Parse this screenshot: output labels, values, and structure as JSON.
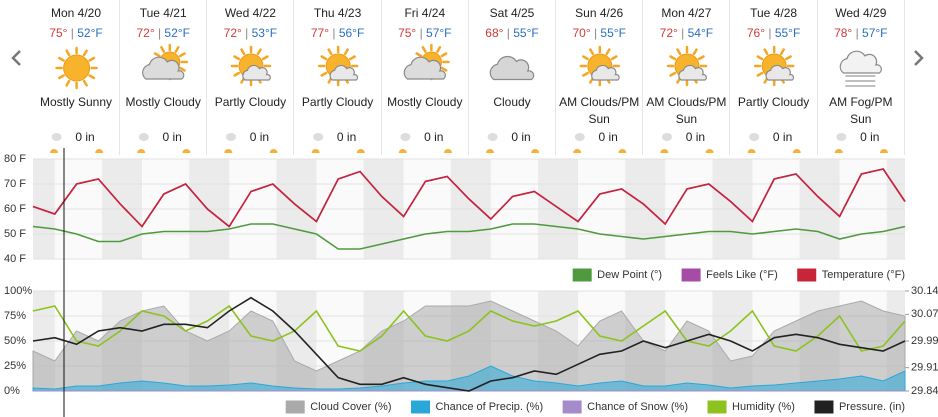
{
  "days": [
    {
      "day": "Mon 4/20",
      "hi": "75°",
      "lo": "52°F",
      "condition": "Mostly Sunny",
      "precip": "0 in"
    },
    {
      "day": "Tue 4/21",
      "hi": "72°",
      "lo": "52°F",
      "condition": "Mostly Cloudy",
      "precip": "0 in"
    },
    {
      "day": "Wed 4/22",
      "hi": "72°",
      "lo": "53°F",
      "condition": "Partly Cloudy",
      "precip": "0 in"
    },
    {
      "day": "Thu 4/23",
      "hi": "77°",
      "lo": "56°F",
      "condition": "Partly Cloudy",
      "precip": "0 in"
    },
    {
      "day": "Fri 4/24",
      "hi": "75°",
      "lo": "57°F",
      "condition": "Mostly Cloudy",
      "precip": "0 in"
    },
    {
      "day": "Sat 4/25",
      "hi": "68°",
      "lo": "55°F",
      "condition": "Cloudy",
      "precip": "0 in"
    },
    {
      "day": "Sun 4/26",
      "hi": "70°",
      "lo": "55°F",
      "condition": "AM Clouds/PM Sun",
      "precip": "0 in"
    },
    {
      "day": "Mon 4/27",
      "hi": "72°",
      "lo": "54°F",
      "condition": "AM Clouds/PM Sun",
      "precip": "0 in"
    },
    {
      "day": "Tue 4/28",
      "hi": "76°",
      "lo": "55°F",
      "condition": "Partly Cloudy",
      "precip": "0 in"
    },
    {
      "day": "Wed 4/29",
      "hi": "78°",
      "lo": "57°F",
      "condition": "AM Fog/PM Sun",
      "precip": "0 in"
    }
  ],
  "chart_data": [
    {
      "type": "line",
      "x": [
        0,
        6,
        12,
        18,
        24,
        30,
        36,
        42,
        48,
        54,
        60,
        66,
        72,
        78,
        84,
        90,
        96,
        102,
        108,
        114,
        120,
        126,
        132,
        138,
        144,
        150,
        156,
        162,
        168,
        174,
        180,
        186,
        192,
        198,
        204,
        210,
        216,
        222,
        228,
        234,
        240
      ],
      "xlim": [
        0,
        240
      ],
      "ylim": [
        40,
        80
      ],
      "grid": true,
      "yticks": [
        {
          "value": 40,
          "label": "40 F"
        },
        {
          "value": 50,
          "label": "50 F"
        },
        {
          "value": 60,
          "label": "60 F"
        },
        {
          "value": 70,
          "label": "70 F"
        },
        {
          "value": 80,
          "label": "80 F"
        }
      ],
      "series": [
        {
          "name": "Dew Point (°)",
          "color": "#4f9a3e",
          "values": [
            53,
            52,
            50,
            47,
            47,
            50,
            51,
            51,
            51,
            52,
            54,
            54,
            52,
            50,
            44,
            44,
            46,
            48,
            50,
            51,
            51,
            52,
            54,
            54,
            53,
            52,
            50,
            49,
            48,
            49,
            50,
            51,
            51,
            50,
            51,
            52,
            51,
            48,
            50,
            51,
            53
          ]
        },
        {
          "name": "Feels Like (°F)",
          "color": "#a64ca6",
          "values": [
            61,
            58,
            70,
            72,
            62,
            53,
            66,
            70,
            60,
            53,
            67,
            70,
            62,
            55,
            72,
            75,
            65,
            57,
            71,
            73,
            64,
            56,
            65,
            67,
            61,
            55,
            66,
            68,
            62,
            54,
            68,
            70,
            63,
            55,
            72,
            74,
            65,
            57,
            74,
            76,
            63
          ]
        },
        {
          "name": "Temperature (°F)",
          "color": "#c8243a",
          "values": [
            61,
            58,
            70,
            72,
            62,
            53,
            66,
            70,
            60,
            53,
            67,
            70,
            62,
            55,
            72,
            75,
            65,
            57,
            71,
            73,
            64,
            56,
            65,
            67,
            61,
            55,
            66,
            68,
            62,
            54,
            68,
            70,
            63,
            55,
            72,
            74,
            65,
            57,
            74,
            76,
            63
          ]
        }
      ]
    },
    {
      "type": "line",
      "x": [
        0,
        6,
        12,
        18,
        24,
        30,
        36,
        42,
        48,
        54,
        60,
        66,
        72,
        78,
        84,
        90,
        96,
        102,
        108,
        114,
        120,
        126,
        132,
        138,
        144,
        150,
        156,
        162,
        168,
        174,
        180,
        186,
        192,
        198,
        204,
        210,
        216,
        222,
        228,
        234,
        240
      ],
      "xlim": [
        0,
        240
      ],
      "ylim": [
        0,
        100
      ],
      "y2lim": [
        29.84,
        30.14
      ],
      "yticks": [
        {
          "value": 0,
          "label": "0%"
        },
        {
          "value": 25,
          "label": "25%"
        },
        {
          "value": 50,
          "label": "50%"
        },
        {
          "value": 75,
          "label": "75%"
        },
        {
          "value": 100,
          "label": "100%"
        }
      ],
      "y2ticks": [
        29.84,
        29.91,
        29.99,
        30.07,
        30.14
      ],
      "series": [
        {
          "name": "Cloud Cover (%)",
          "color": "#aaaaaa",
          "style": "area",
          "values": [
            40,
            30,
            60,
            50,
            70,
            80,
            85,
            60,
            50,
            60,
            80,
            70,
            30,
            20,
            30,
            40,
            60,
            70,
            85,
            85,
            85,
            90,
            80,
            70,
            60,
            45,
            70,
            80,
            50,
            40,
            70,
            60,
            30,
            35,
            60,
            70,
            80,
            85,
            90,
            80,
            75
          ]
        },
        {
          "name": "Chance of Precip. (%)",
          "color": "#29a8d8",
          "style": "area",
          "values": [
            3,
            2,
            5,
            5,
            8,
            10,
            8,
            5,
            5,
            6,
            8,
            5,
            3,
            2,
            2,
            3,
            5,
            8,
            10,
            10,
            15,
            25,
            15,
            10,
            8,
            5,
            8,
            10,
            5,
            5,
            8,
            6,
            3,
            5,
            6,
            8,
            10,
            12,
            15,
            10,
            20
          ]
        },
        {
          "name": "Chance of Snow (%)",
          "color": "#a58bc9",
          "style": "area",
          "values": [
            0,
            0,
            0,
            0,
            0,
            0,
            0,
            0,
            0,
            0,
            0,
            0,
            0,
            0,
            0,
            0,
            0,
            0,
            0,
            0,
            0,
            0,
            0,
            0,
            0,
            0,
            0,
            0,
            0,
            0,
            0,
            0,
            0,
            0,
            0,
            0,
            0,
            0,
            0,
            0,
            0
          ]
        },
        {
          "name": "Humidity (%)",
          "color": "#8dc21f",
          "style": "line",
          "values": [
            80,
            85,
            50,
            45,
            60,
            80,
            75,
            60,
            70,
            85,
            55,
            50,
            60,
            80,
            45,
            40,
            55,
            80,
            55,
            50,
            60,
            80,
            70,
            65,
            70,
            80,
            55,
            50,
            65,
            80,
            50,
            45,
            60,
            80,
            45,
            40,
            55,
            75,
            40,
            45,
            70
          ]
        },
        {
          "name": "Pressure. (in)",
          "color": "#222222",
          "style": "line",
          "axis": "y2",
          "values": [
            29.99,
            30.0,
            29.98,
            30.02,
            30.03,
            30.02,
            30.04,
            30.04,
            30.03,
            30.08,
            30.12,
            30.08,
            30.02,
            29.95,
            29.88,
            29.86,
            29.86,
            29.88,
            29.86,
            29.85,
            29.84,
            29.87,
            29.88,
            29.9,
            29.89,
            29.92,
            29.95,
            29.96,
            29.99,
            29.97,
            29.99,
            30.01,
            29.99,
            29.96,
            30.0,
            30.01,
            30.0,
            29.98,
            29.97,
            29.96,
            29.99
          ]
        }
      ]
    }
  ]
}
